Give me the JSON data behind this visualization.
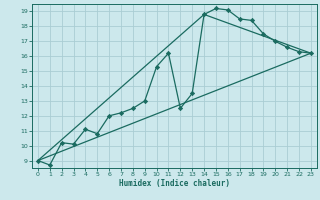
{
  "xlabel": "Humidex (Indice chaleur)",
  "bg_color": "#cce8ec",
  "grid_color": "#aacdd3",
  "line_color": "#1a6b60",
  "xlim": [
    -0.5,
    23.5
  ],
  "ylim": [
    8.5,
    19.5
  ],
  "xticks": [
    0,
    1,
    2,
    3,
    4,
    5,
    6,
    7,
    8,
    9,
    10,
    11,
    12,
    13,
    14,
    15,
    16,
    17,
    18,
    19,
    20,
    21,
    22,
    23
  ],
  "yticks": [
    9,
    10,
    11,
    12,
    13,
    14,
    15,
    16,
    17,
    18,
    19
  ],
  "series1_x": [
    0,
    1,
    2,
    3,
    4,
    5,
    6,
    7,
    8,
    9,
    10,
    11,
    12,
    13,
    14,
    15,
    16,
    17,
    18,
    19,
    20,
    21,
    22,
    23
  ],
  "series1_y": [
    9.0,
    8.7,
    10.2,
    10.1,
    11.1,
    10.8,
    12.0,
    12.2,
    12.5,
    13.0,
    15.3,
    16.2,
    12.5,
    13.5,
    18.8,
    19.2,
    19.1,
    18.5,
    18.4,
    17.5,
    17.0,
    16.6,
    16.3,
    16.2
  ],
  "series2_x": [
    0,
    23
  ],
  "series2_y": [
    9.0,
    16.2
  ],
  "series3_x": [
    0,
    14,
    23
  ],
  "series3_y": [
    9.0,
    18.8,
    16.2
  ]
}
